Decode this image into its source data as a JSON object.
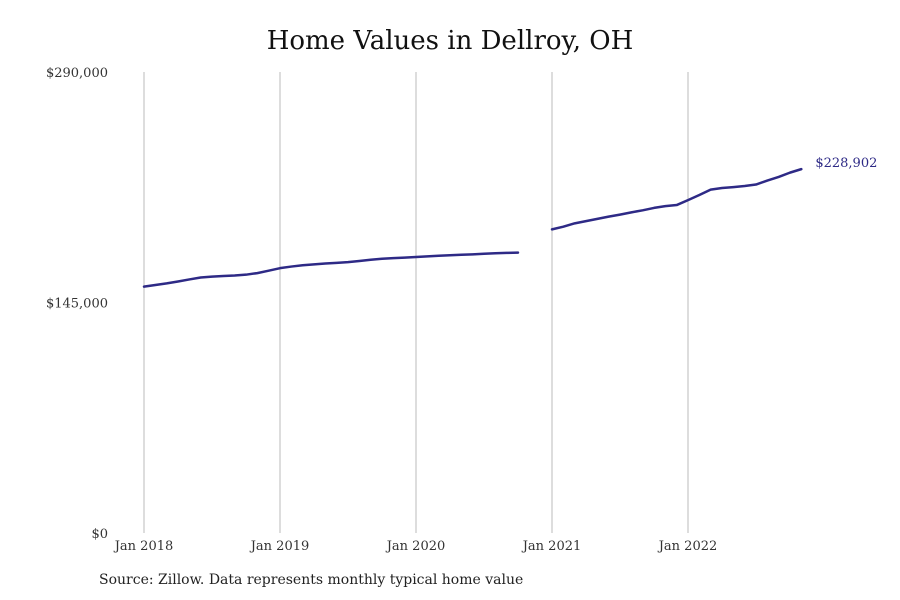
{
  "title": "Home Values in Dellroy, OH",
  "source": "Source: Zillow. Data represents monthly typical home value",
  "colors": {
    "line": "#2e2a86",
    "grid": "#bbbbbb",
    "text": "#333333"
  },
  "chart_data": {
    "type": "line",
    "title": "Home Values in Dellroy, OH",
    "xlabel": "",
    "ylabel": "",
    "ylim": [
      0,
      290000
    ],
    "xlim": [
      "2018-01",
      "2022-12"
    ],
    "y_ticks": [
      0,
      145000,
      290000
    ],
    "y_tick_labels": [
      "$0",
      "$145,000",
      "$290,000"
    ],
    "x_ticks": [
      "2018-01",
      "2019-01",
      "2020-01",
      "2021-01",
      "2022-01"
    ],
    "x_tick_labels": [
      "Jan 2018",
      "Jan 2019",
      "Jan 2020",
      "Jan 2021",
      "Jan 2022"
    ],
    "grid": "vertical",
    "legend": "none",
    "end_label": "$228,902",
    "series": [
      {
        "segments": [
          [
            [
              "2018-01",
              155000
            ],
            [
              "2018-02",
              156000
            ],
            [
              "2018-03",
              157000
            ],
            [
              "2018-04",
              158200
            ],
            [
              "2018-05",
              159500
            ],
            [
              "2018-06",
              160700
            ],
            [
              "2018-07",
              161300
            ],
            [
              "2018-08",
              161700
            ],
            [
              "2018-09",
              162000
            ],
            [
              "2018-10",
              162500
            ],
            [
              "2018-11",
              163500
            ],
            [
              "2018-12",
              165000
            ],
            [
              "2019-01",
              166600
            ],
            [
              "2019-02",
              167600
            ],
            [
              "2019-03",
              168400
            ],
            [
              "2019-04",
              169000
            ],
            [
              "2019-05",
              169500
            ],
            [
              "2019-06",
              169900
            ],
            [
              "2019-07",
              170400
            ],
            [
              "2019-08",
              171100
            ],
            [
              "2019-09",
              171900
            ],
            [
              "2019-10",
              172500
            ],
            [
              "2019-11",
              172900
            ],
            [
              "2019-12",
              173200
            ],
            [
              "2020-01",
              173600
            ],
            [
              "2020-02",
              174000
            ],
            [
              "2020-03",
              174400
            ],
            [
              "2020-04",
              174700
            ],
            [
              "2020-05",
              175000
            ],
            [
              "2020-06",
              175300
            ],
            [
              "2020-07",
              175700
            ],
            [
              "2020-08",
              176000
            ],
            [
              "2020-09",
              176200
            ],
            [
              "2020-10",
              176400
            ]
          ],
          [
            [
              "2021-01",
              191000
            ],
            [
              "2021-02",
              192700
            ],
            [
              "2021-03",
              194800
            ],
            [
              "2021-04",
              196200
            ],
            [
              "2021-05",
              197600
            ],
            [
              "2021-06",
              199000
            ],
            [
              "2021-07",
              200300
            ],
            [
              "2021-08",
              201700
            ],
            [
              "2021-09",
              203000
            ],
            [
              "2021-10",
              204500
            ],
            [
              "2021-11",
              205600
            ],
            [
              "2021-12",
              206300
            ],
            [
              "2022-01",
              209400
            ],
            [
              "2022-02",
              212600
            ],
            [
              "2022-03",
              216000
            ],
            [
              "2022-04",
              217000
            ],
            [
              "2022-05",
              217600
            ],
            [
              "2022-06",
              218300
            ],
            [
              "2022-07",
              219200
            ],
            [
              "2022-08",
              221700
            ],
            [
              "2022-09",
              224000
            ],
            [
              "2022-10",
              226700
            ],
            [
              "2022-11",
              228902
            ]
          ]
        ]
      }
    ]
  }
}
